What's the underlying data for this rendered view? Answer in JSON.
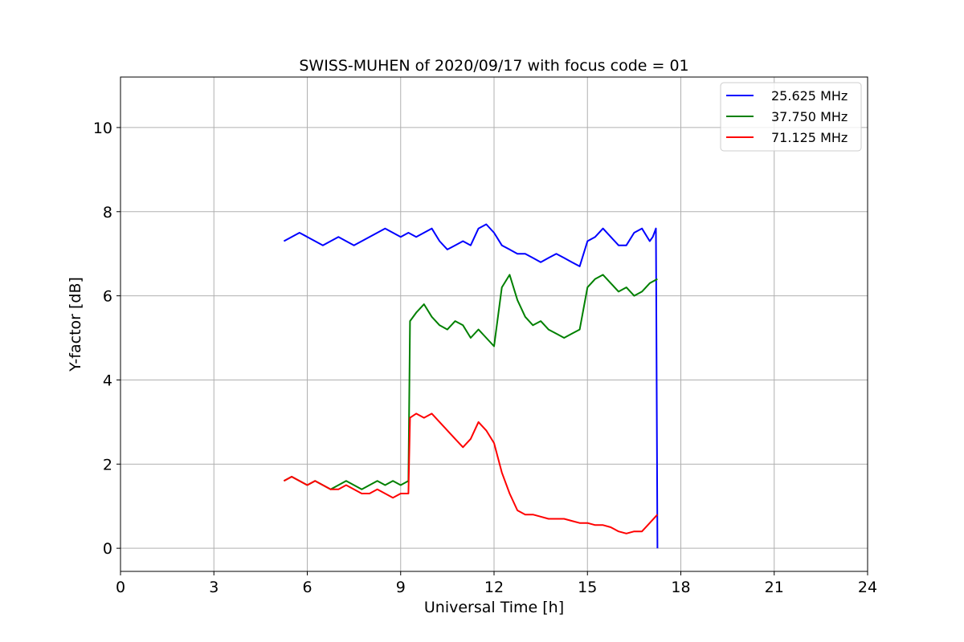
{
  "chart_data": {
    "type": "line",
    "title": "SWISS-MUHEN of 2020/09/17 with focus code = 01",
    "xlabel": "Universal Time [h]",
    "ylabel": "Y-factor [dB]",
    "xlim": [
      0,
      24
    ],
    "ylim": [
      -0.55,
      11.2
    ],
    "xticks": [
      0,
      3,
      6,
      9,
      12,
      15,
      18,
      21,
      24
    ],
    "yticks": [
      0,
      2,
      4,
      6,
      8,
      10
    ],
    "grid": true,
    "legend_position": "top-right",
    "series": [
      {
        "name": "25.625 MHz",
        "color": "#0000ff",
        "x": [
          5.25,
          5.5,
          5.75,
          6.0,
          6.25,
          6.5,
          6.75,
          7.0,
          7.25,
          7.5,
          7.75,
          8.0,
          8.25,
          8.5,
          8.75,
          9.0,
          9.25,
          9.5,
          9.75,
          10.0,
          10.25,
          10.5,
          10.75,
          11.0,
          11.25,
          11.5,
          11.75,
          12.0,
          12.25,
          12.5,
          12.75,
          13.0,
          13.25,
          13.5,
          13.75,
          14.0,
          14.25,
          14.5,
          14.75,
          15.0,
          15.25,
          15.5,
          15.75,
          16.0,
          16.25,
          16.5,
          16.75,
          17.0,
          17.1,
          17.2,
          17.25
        ],
        "y": [
          7.3,
          7.4,
          7.5,
          7.4,
          7.3,
          7.2,
          7.3,
          7.4,
          7.3,
          7.2,
          7.3,
          7.4,
          7.5,
          7.6,
          7.5,
          7.4,
          7.5,
          7.4,
          7.5,
          7.6,
          7.3,
          7.1,
          7.2,
          7.3,
          7.2,
          7.6,
          7.7,
          7.5,
          7.2,
          7.1,
          7.0,
          7.0,
          6.9,
          6.8,
          6.9,
          7.0,
          6.9,
          6.8,
          6.7,
          7.3,
          7.4,
          7.6,
          7.4,
          7.2,
          7.2,
          7.5,
          7.6,
          7.3,
          7.4,
          7.6,
          0.0
        ]
      },
      {
        "name": "37.750 MHz",
        "color": "#008000",
        "x": [
          5.25,
          5.5,
          5.75,
          6.0,
          6.25,
          6.5,
          6.75,
          7.0,
          7.25,
          7.5,
          7.75,
          8.0,
          8.25,
          8.5,
          8.75,
          9.0,
          9.25,
          9.3,
          9.5,
          9.75,
          10.0,
          10.25,
          10.5,
          10.75,
          11.0,
          11.25,
          11.5,
          11.75,
          12.0,
          12.25,
          12.5,
          12.75,
          13.0,
          13.25,
          13.5,
          13.75,
          14.0,
          14.25,
          14.5,
          14.75,
          15.0,
          15.25,
          15.5,
          15.75,
          16.0,
          16.25,
          16.5,
          16.75,
          17.0,
          17.25
        ],
        "y": [
          1.6,
          1.7,
          1.6,
          1.5,
          1.6,
          1.5,
          1.4,
          1.5,
          1.6,
          1.5,
          1.4,
          1.5,
          1.6,
          1.5,
          1.6,
          1.5,
          1.6,
          5.4,
          5.6,
          5.8,
          5.5,
          5.3,
          5.2,
          5.4,
          5.3,
          5.0,
          5.2,
          5.0,
          4.8,
          6.2,
          6.5,
          5.9,
          5.5,
          5.3,
          5.4,
          5.2,
          5.1,
          5.0,
          5.1,
          5.2,
          6.2,
          6.4,
          6.5,
          6.3,
          6.1,
          6.2,
          6.0,
          6.1,
          6.3,
          6.4
        ]
      },
      {
        "name": "71.125 MHz",
        "color": "#ff0000",
        "x": [
          5.25,
          5.5,
          5.75,
          6.0,
          6.25,
          6.5,
          6.75,
          7.0,
          7.25,
          7.5,
          7.75,
          8.0,
          8.25,
          8.5,
          8.75,
          9.0,
          9.25,
          9.3,
          9.5,
          9.75,
          10.0,
          10.25,
          10.5,
          10.75,
          11.0,
          11.25,
          11.5,
          11.75,
          12.0,
          12.25,
          12.5,
          12.75,
          13.0,
          13.25,
          13.5,
          13.75,
          14.0,
          14.25,
          14.5,
          14.75,
          15.0,
          15.25,
          15.5,
          15.75,
          16.0,
          16.25,
          16.5,
          16.75,
          17.0,
          17.25
        ],
        "y": [
          1.6,
          1.7,
          1.6,
          1.5,
          1.6,
          1.5,
          1.4,
          1.4,
          1.5,
          1.4,
          1.3,
          1.3,
          1.4,
          1.3,
          1.2,
          1.3,
          1.3,
          3.1,
          3.2,
          3.1,
          3.2,
          3.0,
          2.8,
          2.6,
          2.4,
          2.6,
          3.0,
          2.8,
          2.5,
          1.8,
          1.3,
          0.9,
          0.8,
          0.8,
          0.75,
          0.7,
          0.7,
          0.7,
          0.65,
          0.6,
          0.6,
          0.55,
          0.55,
          0.5,
          0.4,
          0.35,
          0.4,
          0.4,
          0.6,
          0.8
        ]
      }
    ]
  }
}
